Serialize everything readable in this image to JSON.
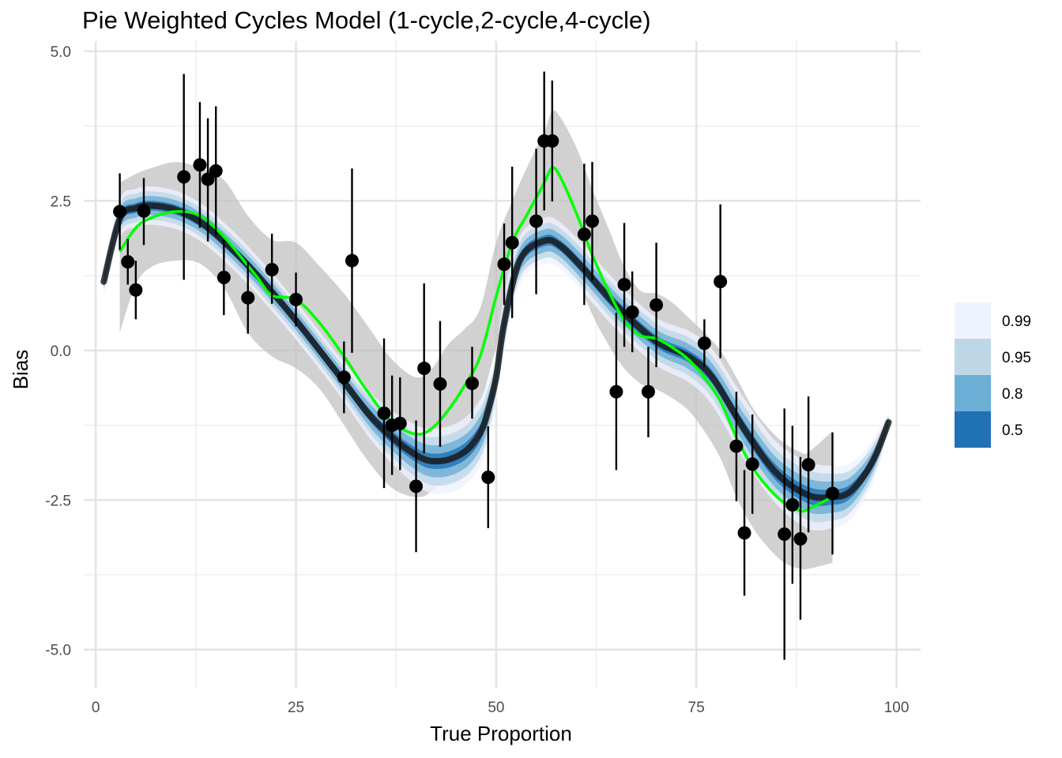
{
  "chart_data": {
    "type": "scatter",
    "title": "Pie Weighted Cycles Model (1-cycle,2-cycle,4-cycle)",
    "xlabel": "True Proportion",
    "ylabel": "Bias",
    "xlim": [
      -1.5,
      103
    ],
    "ylim": [
      -5.65,
      5.17
    ],
    "x_ticks": [
      {
        "value": 0,
        "label": "0"
      },
      {
        "value": 25,
        "label": "25"
      },
      {
        "value": 50,
        "label": "50"
      },
      {
        "value": 75,
        "label": "75"
      },
      {
        "value": 100,
        "label": "100"
      }
    ],
    "y_ticks": [
      {
        "value": 5,
        "label": "5.0"
      },
      {
        "value": 2.5,
        "label": "2.5"
      },
      {
        "value": 0,
        "label": "0.0"
      },
      {
        "value": -2.5,
        "label": "-2.5"
      },
      {
        "value": -5,
        "label": "-5.0"
      }
    ],
    "grid": true,
    "legend": {
      "position": "right",
      "entries": [
        {
          "label": "0.99",
          "color": "#eff3ff"
        },
        {
          "label": "0.95",
          "color": "#bdd7e7"
        },
        {
          "label": "0.8",
          "color": "#6baed6"
        },
        {
          "label": "0.5",
          "color": "#2171b5"
        }
      ]
    },
    "colors": {
      "points": "#000000",
      "green_curve": "#00ff00",
      "model_line": "#1a1a1a",
      "grey_band": "#bfbfbf"
    },
    "model_line": {
      "x": [
        1,
        3,
        5,
        7,
        10,
        13,
        16,
        20,
        25,
        30,
        35,
        40,
        43,
        46,
        48,
        49,
        50,
        51,
        53,
        56,
        58,
        61,
        65,
        70,
        74,
        77,
        81,
        85,
        89,
        92,
        94,
        96,
        97.5,
        99
      ],
      "y": [
        1.15,
        2.2,
        2.38,
        2.42,
        2.35,
        2.15,
        1.82,
        1.28,
        0.5,
        -0.35,
        -1.2,
        -1.75,
        -1.85,
        -1.7,
        -1.38,
        -1.0,
        -0.45,
        0.45,
        1.52,
        1.83,
        1.75,
        1.35,
        0.75,
        0.15,
        -0.1,
        -0.45,
        -1.32,
        -2.05,
        -2.42,
        -2.45,
        -2.38,
        -2.08,
        -1.72,
        -1.2
      ]
    },
    "band_50": {
      "x": [
        1,
        3,
        5,
        7,
        10,
        13,
        16,
        20,
        25,
        30,
        35,
        40,
        43,
        46,
        48,
        49,
        50,
        51,
        53,
        56,
        58,
        61,
        65,
        70,
        74,
        77,
        81,
        85,
        89,
        92,
        94,
        96,
        97.5,
        99
      ],
      "lower": [
        1.1,
        2.12,
        2.3,
        2.34,
        2.27,
        2.07,
        1.74,
        1.2,
        0.42,
        -0.43,
        -1.3,
        -1.87,
        -1.98,
        -1.84,
        -1.52,
        -1.12,
        -0.55,
        0.33,
        1.42,
        1.74,
        1.66,
        1.25,
        0.65,
        0.05,
        -0.2,
        -0.56,
        -1.44,
        -2.18,
        -2.56,
        -2.58,
        -2.5,
        -2.18,
        -1.8,
        -1.24
      ],
      "upper": [
        1.2,
        2.28,
        2.46,
        2.5,
        2.43,
        2.23,
        1.9,
        1.36,
        0.58,
        -0.27,
        -1.1,
        -1.63,
        -1.72,
        -1.56,
        -1.24,
        -0.88,
        -0.35,
        0.57,
        1.62,
        1.92,
        1.84,
        1.45,
        0.85,
        0.25,
        0.0,
        -0.34,
        -1.2,
        -1.92,
        -2.28,
        -2.32,
        -2.26,
        -1.98,
        -1.64,
        -1.16
      ]
    },
    "band_80": {
      "x": [
        1,
        3,
        5,
        7,
        10,
        13,
        16,
        20,
        25,
        30,
        35,
        40,
        43,
        46,
        48,
        49,
        50,
        51,
        53,
        56,
        58,
        61,
        65,
        70,
        74,
        77,
        81,
        85,
        89,
        92,
        94,
        96,
        97.5,
        99
      ],
      "lower": [
        1.05,
        2.04,
        2.22,
        2.26,
        2.19,
        1.99,
        1.66,
        1.12,
        0.34,
        -0.51,
        -1.4,
        -2.0,
        -2.12,
        -1.98,
        -1.66,
        -1.25,
        -0.65,
        0.22,
        1.32,
        1.64,
        1.56,
        1.15,
        0.55,
        -0.05,
        -0.31,
        -0.68,
        -1.57,
        -2.31,
        -2.7,
        -2.71,
        -2.62,
        -2.28,
        -1.88,
        -1.28
      ],
      "upper": [
        1.25,
        2.36,
        2.54,
        2.58,
        2.51,
        2.31,
        1.98,
        1.44,
        0.66,
        -0.19,
        -1.0,
        -1.5,
        -1.58,
        -1.42,
        -1.1,
        -0.75,
        -0.25,
        0.68,
        1.72,
        2.02,
        1.94,
        1.55,
        0.95,
        0.35,
        0.11,
        -0.22,
        -1.07,
        -1.79,
        -2.14,
        -2.19,
        -2.14,
        -1.88,
        -1.56,
        -1.12
      ]
    },
    "band_95": {
      "x": [
        1,
        3,
        5,
        7,
        10,
        13,
        16,
        20,
        25,
        30,
        35,
        40,
        43,
        46,
        48,
        49,
        50,
        51,
        53,
        56,
        58,
        61,
        65,
        70,
        74,
        77,
        81,
        85,
        89,
        92,
        94,
        96,
        97.5,
        99
      ],
      "lower": [
        1.0,
        1.96,
        2.14,
        2.18,
        2.11,
        1.91,
        1.58,
        1.04,
        0.26,
        -0.59,
        -1.5,
        -2.12,
        -2.26,
        -2.12,
        -1.8,
        -1.38,
        -0.75,
        0.1,
        1.22,
        1.54,
        1.46,
        1.05,
        0.45,
        -0.15,
        -0.42,
        -0.8,
        -1.7,
        -2.44,
        -2.84,
        -2.84,
        -2.74,
        -2.38,
        -1.96,
        -1.32
      ],
      "upper": [
        1.3,
        2.44,
        2.62,
        2.66,
        2.59,
        2.39,
        2.06,
        1.52,
        0.74,
        -0.11,
        -0.9,
        -1.38,
        -1.44,
        -1.28,
        -0.96,
        -0.62,
        -0.15,
        0.8,
        1.82,
        2.12,
        2.04,
        1.65,
        1.05,
        0.45,
        0.22,
        -0.1,
        -0.94,
        -1.66,
        -2.0,
        -2.06,
        -2.02,
        -1.78,
        -1.48,
        -1.08
      ]
    },
    "band_99": {
      "x": [
        1,
        3,
        5,
        7,
        10,
        13,
        16,
        20,
        25,
        30,
        35,
        40,
        43,
        46,
        48,
        49,
        50,
        51,
        53,
        56,
        58,
        61,
        65,
        70,
        74,
        77,
        81,
        85,
        89,
        92,
        94,
        96,
        97.5,
        99
      ],
      "lower": [
        0.95,
        1.88,
        2.06,
        2.1,
        2.03,
        1.83,
        1.5,
        0.96,
        0.18,
        -0.67,
        -1.6,
        -2.25,
        -2.4,
        -2.26,
        -1.94,
        -1.5,
        -0.85,
        -0.02,
        1.12,
        1.44,
        1.36,
        0.95,
        0.35,
        -0.25,
        -0.53,
        -0.92,
        -1.83,
        -2.57,
        -2.98,
        -2.97,
        -2.86,
        -2.48,
        -2.04,
        -1.36
      ],
      "upper": [
        1.35,
        2.52,
        2.7,
        2.74,
        2.67,
        2.47,
        2.14,
        1.6,
        0.82,
        -0.03,
        -0.8,
        -1.25,
        -1.3,
        -1.14,
        -0.82,
        -0.5,
        -0.05,
        0.92,
        1.92,
        2.22,
        2.14,
        1.75,
        1.15,
        0.55,
        0.33,
        0.02,
        -0.81,
        -1.53,
        -1.86,
        -1.93,
        -1.9,
        -1.68,
        -1.4,
        -1.04
      ]
    },
    "green_curve": {
      "x": [
        3,
        5,
        7,
        10,
        13,
        16,
        20,
        22,
        25,
        28,
        31,
        34,
        37,
        40,
        42,
        44,
        46,
        48,
        50,
        52,
        54,
        56,
        57,
        58,
        60,
        62,
        64,
        66,
        68,
        70,
        72,
        74,
        76,
        78,
        80,
        82,
        84,
        86,
        88,
        89,
        92
      ],
      "y": [
        1.65,
        2.05,
        2.22,
        2.32,
        2.25,
        1.9,
        1.25,
        0.92,
        0.85,
        0.45,
        -0.1,
        -0.7,
        -1.2,
        -1.4,
        -1.3,
        -1.0,
        -0.6,
        -0.1,
        0.9,
        1.8,
        2.3,
        2.8,
        3.05,
        2.9,
        2.3,
        1.6,
        1.0,
        0.5,
        0.25,
        0.2,
        0.05,
        -0.15,
        -0.45,
        -0.85,
        -1.45,
        -1.95,
        -2.3,
        -2.55,
        -2.68,
        -2.65,
        -2.45
      ]
    },
    "grey_band": {
      "x": [
        3,
        5,
        7,
        10,
        13,
        16,
        19,
        22,
        25,
        28,
        31,
        34,
        37,
        40,
        42,
        44,
        46,
        48,
        50,
        52,
        54,
        56,
        57,
        58,
        60,
        62,
        64,
        66,
        68,
        70,
        72,
        74,
        76,
        78,
        80,
        82,
        84,
        86,
        88,
        89,
        92
      ],
      "lower": [
        0.3,
        1.1,
        1.4,
        1.5,
        1.45,
        1.05,
        0.3,
        -0.1,
        -0.3,
        -0.65,
        -1.25,
        -1.85,
        -2.3,
        -2.45,
        -2.35,
        -2.0,
        -1.45,
        -0.9,
        0.05,
        1.0,
        1.5,
        1.8,
        2.0,
        1.8,
        1.25,
        0.6,
        0.1,
        -0.3,
        -0.55,
        -0.65,
        -0.8,
        -1.0,
        -1.35,
        -1.8,
        -2.45,
        -2.95,
        -3.3,
        -3.55,
        -3.65,
        -3.65,
        -3.55
      ],
      "upper": [
        2.8,
        2.95,
        3.05,
        3.15,
        3.05,
        2.85,
        2.25,
        1.85,
        1.8,
        1.4,
        0.95,
        0.4,
        -0.15,
        -0.45,
        -0.3,
        0.1,
        0.35,
        0.7,
        1.8,
        2.5,
        3.1,
        3.65,
        4.0,
        3.9,
        3.4,
        2.7,
        2.05,
        1.4,
        1.0,
        0.95,
        0.8,
        0.55,
        0.3,
        0.0,
        -0.45,
        -0.95,
        -1.3,
        -1.55,
        -1.7,
        -1.7,
        -1.35
      ]
    },
    "points": [
      {
        "x": 3,
        "y": 2.32,
        "ymin": 1.68,
        "ymax": 2.96
      },
      {
        "x": 4,
        "y": 1.48,
        "ymin": 1.1,
        "ymax": 1.86
      },
      {
        "x": 5,
        "y": 1.01,
        "ymin": 0.52,
        "ymax": 1.5
      },
      {
        "x": 6,
        "y": 2.33,
        "ymin": 1.76,
        "ymax": 2.88
      },
      {
        "x": 11,
        "y": 2.9,
        "ymin": 1.18,
        "ymax": 4.62
      },
      {
        "x": 13,
        "y": 3.1,
        "ymin": 2.05,
        "ymax": 4.15
      },
      {
        "x": 14,
        "y": 2.86,
        "ymin": 1.82,
        "ymax": 3.88
      },
      {
        "x": 15,
        "y": 3.0,
        "ymin": 1.92,
        "ymax": 4.08
      },
      {
        "x": 16,
        "y": 1.22,
        "ymin": 0.59,
        "ymax": 1.85
      },
      {
        "x": 19,
        "y": 0.88,
        "ymin": 0.28,
        "ymax": 1.48
      },
      {
        "x": 22,
        "y": 1.35,
        "ymin": 0.78,
        "ymax": 1.95
      },
      {
        "x": 25,
        "y": 0.85,
        "ymin": 0.4,
        "ymax": 1.3
      },
      {
        "x": 31,
        "y": -0.45,
        "ymin": -1.05,
        "ymax": 0.15
      },
      {
        "x": 32,
        "y": 1.5,
        "ymin": -0.04,
        "ymax": 3.04
      },
      {
        "x": 36,
        "y": -1.05,
        "ymin": -2.3,
        "ymax": 0.2
      },
      {
        "x": 37,
        "y": -1.25,
        "ymin": -2.08,
        "ymax": -0.42
      },
      {
        "x": 38,
        "y": -1.22,
        "ymin": -2.0,
        "ymax": -0.45
      },
      {
        "x": 40,
        "y": -2.27,
        "ymin": -3.37,
        "ymax": -1.17
      },
      {
        "x": 41,
        "y": -0.3,
        "ymin": -1.72,
        "ymax": 1.12
      },
      {
        "x": 43,
        "y": -0.56,
        "ymin": -1.61,
        "ymax": 0.49
      },
      {
        "x": 47,
        "y": -0.55,
        "ymin": -1.14,
        "ymax": 0.06
      },
      {
        "x": 49,
        "y": -2.12,
        "ymin": -2.97,
        "ymax": -1.27
      },
      {
        "x": 51,
        "y": 1.44,
        "ymin": 0.76,
        "ymax": 2.12
      },
      {
        "x": 52,
        "y": 1.8,
        "ymin": 0.54,
        "ymax": 3.07
      },
      {
        "x": 55,
        "y": 2.16,
        "ymin": 0.94,
        "ymax": 3.37
      },
      {
        "x": 56,
        "y": 3.5,
        "ymin": 2.34,
        "ymax": 4.66
      },
      {
        "x": 57,
        "y": 3.5,
        "ymin": 2.49,
        "ymax": 4.51
      },
      {
        "x": 61,
        "y": 1.94,
        "ymin": 0.76,
        "ymax": 3.12
      },
      {
        "x": 62,
        "y": 2.16,
        "ymin": 1.17,
        "ymax": 3.15
      },
      {
        "x": 65,
        "y": -0.69,
        "ymin": -2.0,
        "ymax": 0.63
      },
      {
        "x": 66,
        "y": 1.1,
        "ymin": 0.06,
        "ymax": 2.13
      },
      {
        "x": 67,
        "y": 0.64,
        "ymin": -0.03,
        "ymax": 1.32
      },
      {
        "x": 69,
        "y": -0.69,
        "ymin": -1.45,
        "ymax": 0.06
      },
      {
        "x": 70,
        "y": 0.76,
        "ymin": -0.28,
        "ymax": 1.8
      },
      {
        "x": 76,
        "y": 0.12,
        "ymin": -0.28,
        "ymax": 0.52
      },
      {
        "x": 78,
        "y": 1.15,
        "ymin": -0.13,
        "ymax": 2.44
      },
      {
        "x": 80,
        "y": -1.6,
        "ymin": -2.52,
        "ymax": -0.69
      },
      {
        "x": 81,
        "y": -3.05,
        "ymin": -4.1,
        "ymax": -2.0
      },
      {
        "x": 82,
        "y": -1.9,
        "ymin": -2.73,
        "ymax": -1.07
      },
      {
        "x": 86,
        "y": -3.07,
        "ymin": -5.17,
        "ymax": -0.97
      },
      {
        "x": 87,
        "y": -2.58,
        "ymin": -3.9,
        "ymax": -1.26
      },
      {
        "x": 88,
        "y": -3.15,
        "ymin": -4.5,
        "ymax": -1.78
      },
      {
        "x": 89,
        "y": -1.91,
        "ymin": -3.04,
        "ymax": -0.77
      },
      {
        "x": 92,
        "y": -2.39,
        "ymin": -3.41,
        "ymax": -1.37
      }
    ]
  }
}
